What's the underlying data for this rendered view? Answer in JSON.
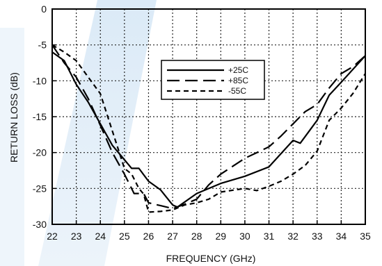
{
  "chart_data": {
    "type": "line",
    "xlabel": "FREQUENCY (GHz)",
    "ylabel": "RETURN LOSS (dB)",
    "xlim": [
      22,
      35
    ],
    "ylim": [
      -30,
      0
    ],
    "xticks": [
      22,
      23,
      24,
      25,
      26,
      27,
      28,
      29,
      30,
      31,
      32,
      33,
      34,
      35
    ],
    "yticks": [
      0,
      -5,
      -10,
      -15,
      -20,
      -25,
      -30
    ],
    "grid": true,
    "grid_style": "dotted",
    "legend_position": "upper-center",
    "series": [
      {
        "name": "+25C",
        "line_style": "solid",
        "color": "#000000",
        "points": [
          [
            22.0,
            -6.0
          ],
          [
            22.5,
            -7.2
          ],
          [
            23.0,
            -10.5
          ],
          [
            23.5,
            -13.0
          ],
          [
            24.0,
            -16.0
          ],
          [
            24.5,
            -19.0
          ],
          [
            25.0,
            -21.0
          ],
          [
            25.3,
            -22.2
          ],
          [
            25.6,
            -22.2
          ],
          [
            26.0,
            -24.0
          ],
          [
            26.5,
            -25.2
          ],
          [
            27.0,
            -27.3
          ],
          [
            27.2,
            -27.6
          ],
          [
            28.0,
            -25.7
          ],
          [
            29.0,
            -24.3
          ],
          [
            30.0,
            -23.3
          ],
          [
            31.0,
            -22.0
          ],
          [
            32.0,
            -18.3
          ],
          [
            32.3,
            -18.7
          ],
          [
            33.0,
            -15.5
          ],
          [
            33.5,
            -12.0
          ],
          [
            34.0,
            -10.2
          ],
          [
            35.0,
            -6.5
          ]
        ]
      },
      {
        "name": "+85C",
        "line_style": "dashed",
        "color": "#000000",
        "points": [
          [
            22.0,
            -5.0
          ],
          [
            22.5,
            -7.5
          ],
          [
            23.0,
            -9.5
          ],
          [
            23.5,
            -12.5
          ],
          [
            24.0,
            -16.2
          ],
          [
            24.5,
            -20.0
          ],
          [
            25.0,
            -23.0
          ],
          [
            25.4,
            -25.7
          ],
          [
            25.8,
            -25.7
          ],
          [
            26.0,
            -27.0
          ],
          [
            26.5,
            -27.4
          ],
          [
            27.0,
            -27.8
          ],
          [
            27.5,
            -27.2
          ],
          [
            28.0,
            -26.5
          ],
          [
            28.5,
            -24.5
          ],
          [
            29.0,
            -23.0
          ],
          [
            30.0,
            -20.8
          ],
          [
            30.5,
            -20.0
          ],
          [
            31.0,
            -19.2
          ],
          [
            31.5,
            -17.7
          ],
          [
            32.0,
            -16.0
          ],
          [
            32.5,
            -14.3
          ],
          [
            33.0,
            -13.3
          ],
          [
            33.5,
            -11.0
          ],
          [
            34.0,
            -9.0
          ],
          [
            34.5,
            -8.0
          ],
          [
            35.0,
            -6.5
          ]
        ]
      },
      {
        "name": "-55C",
        "line_style": "short-dashed",
        "color": "#000000",
        "points": [
          [
            22.0,
            -5.0
          ],
          [
            22.5,
            -6.0
          ],
          [
            23.0,
            -7.2
          ],
          [
            23.5,
            -9.5
          ],
          [
            24.0,
            -11.8
          ],
          [
            24.5,
            -17.0
          ],
          [
            25.0,
            -22.2
          ],
          [
            25.3,
            -23.0
          ],
          [
            25.6,
            -25.0
          ],
          [
            25.8,
            -25.8
          ],
          [
            26.0,
            -28.3
          ],
          [
            26.5,
            -28.2
          ],
          [
            27.0,
            -28.0
          ],
          [
            27.5,
            -27.3
          ],
          [
            28.0,
            -27.0
          ],
          [
            28.5,
            -26.5
          ],
          [
            29.0,
            -25.5
          ],
          [
            30.0,
            -25.0
          ],
          [
            30.5,
            -25.3
          ],
          [
            31.0,
            -24.7
          ],
          [
            31.5,
            -24.0
          ],
          [
            32.0,
            -23.0
          ],
          [
            32.5,
            -21.8
          ],
          [
            33.0,
            -19.8
          ],
          [
            33.5,
            -15.5
          ],
          [
            34.0,
            -13.8
          ],
          [
            34.5,
            -11.7
          ],
          [
            35.0,
            -9.0
          ]
        ]
      }
    ]
  }
}
